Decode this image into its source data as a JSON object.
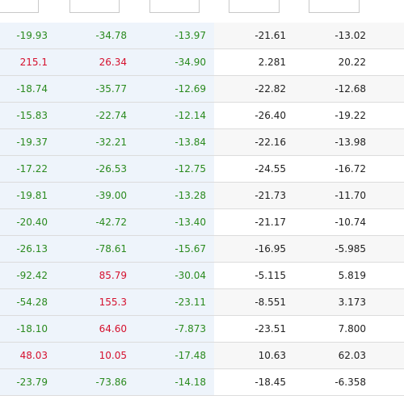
{
  "rows": [
    {
      "c1": "-19.93",
      "c2": "-34.78",
      "c3": "-13.97",
      "c4": "-21.61",
      "c5": "-13.02",
      "t1": "pos",
      "t2": "pos",
      "t3": "pos"
    },
    {
      "c1": "215.1",
      "c2": "26.34",
      "c3": "-34.90",
      "c4": "2.281",
      "c5": "20.22",
      "t1": "neg",
      "t2": "neg",
      "t3": "pos"
    },
    {
      "c1": "-18.74",
      "c2": "-35.77",
      "c3": "-12.69",
      "c4": "-22.82",
      "c5": "-12.68",
      "t1": "pos",
      "t2": "pos",
      "t3": "pos"
    },
    {
      "c1": "-15.83",
      "c2": "-22.74",
      "c3": "-12.14",
      "c4": "-26.40",
      "c5": "-19.22",
      "t1": "pos",
      "t2": "pos",
      "t3": "pos"
    },
    {
      "c1": "-19.37",
      "c2": "-32.21",
      "c3": "-13.84",
      "c4": "-22.16",
      "c5": "-13.98",
      "t1": "pos",
      "t2": "pos",
      "t3": "pos"
    },
    {
      "c1": "-17.22",
      "c2": "-26.53",
      "c3": "-12.75",
      "c4": "-24.55",
      "c5": "-16.72",
      "t1": "pos",
      "t2": "pos",
      "t3": "pos"
    },
    {
      "c1": "-19.81",
      "c2": "-39.00",
      "c3": "-13.28",
      "c4": "-21.73",
      "c5": "-11.70",
      "t1": "pos",
      "t2": "pos",
      "t3": "pos"
    },
    {
      "c1": "-20.40",
      "c2": "-42.72",
      "c3": "-13.40",
      "c4": "-21.17",
      "c5": "-10.74",
      "t1": "pos",
      "t2": "pos",
      "t3": "pos"
    },
    {
      "c1": "-26.13",
      "c2": "-78.61",
      "c3": "-15.67",
      "c4": "-16.95",
      "c5": "-5.985",
      "t1": "pos",
      "t2": "pos",
      "t3": "pos"
    },
    {
      "c1": "-92.42",
      "c2": "85.79",
      "c3": "-30.04",
      "c4": "-5.115",
      "c5": "5.819",
      "t1": "pos",
      "t2": "neg",
      "t3": "pos"
    },
    {
      "c1": "-54.28",
      "c2": "155.3",
      "c3": "-23.11",
      "c4": "-8.551",
      "c5": "3.173",
      "t1": "pos",
      "t2": "neg",
      "t3": "pos"
    },
    {
      "c1": "-18.10",
      "c2": "64.60",
      "c3": "-7.873",
      "c4": "-23.51",
      "c5": "7.800",
      "t1": "pos",
      "t2": "neg",
      "t3": "pos"
    },
    {
      "c1": "48.03",
      "c2": "10.05",
      "c3": "-17.48",
      "c4": "10.63",
      "c5": "62.03",
      "t1": "neg",
      "t2": "neg",
      "t3": "pos"
    },
    {
      "c1": "-23.79",
      "c2": "-73.86",
      "c3": "-14.18",
      "c4": "-18.45",
      "c5": "-6.358",
      "t1": "pos",
      "t2": "pos",
      "t3": "pos"
    }
  ],
  "colors": {
    "positive_text": "#2a8a1e",
    "negative_text": "#d5102d",
    "shaded_column_bg": "#eef4fb",
    "alt_row_bg": "#f7f7f7"
  }
}
